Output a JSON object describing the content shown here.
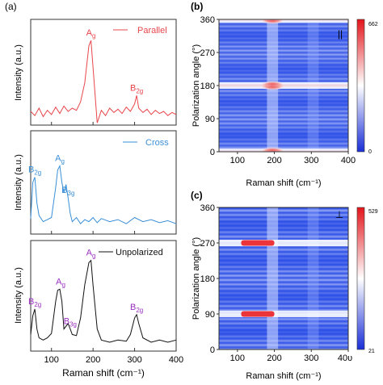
{
  "panels": {
    "a": "(a)",
    "b": "(b)",
    "c": "(c)"
  },
  "colors": {
    "parallel": "#e8464b",
    "cross": "#3a8fd8",
    "unpolarized": "#111111",
    "peak_label_a1": "#e8464b",
    "peak_label_a2": "#3a8fd8",
    "peak_label_a3": "#9b2fc0"
  },
  "chart_data": [
    {
      "type": "line",
      "panel": "a-top",
      "legend": "Parallel",
      "legend_position": "top-right",
      "ylabel": "Intensity (a.u.)",
      "xlim": [
        50,
        400
      ],
      "ylim": [
        0,
        1
      ],
      "x": [
        50,
        60,
        70,
        80,
        90,
        100,
        110,
        120,
        130,
        140,
        150,
        160,
        170,
        180,
        190,
        195,
        200,
        210,
        220,
        230,
        240,
        250,
        260,
        270,
        280,
        290,
        300,
        305,
        310,
        320,
        330,
        340,
        350,
        360,
        370,
        380,
        390,
        400
      ],
      "y": [
        0.13,
        0.09,
        0.16,
        0.08,
        0.14,
        0.1,
        0.17,
        0.11,
        0.18,
        0.13,
        0.16,
        0.14,
        0.22,
        0.4,
        0.75,
        0.8,
        0.55,
        0.02,
        0.14,
        0.09,
        0.16,
        0.12,
        0.15,
        0.11,
        0.17,
        0.13,
        0.2,
        0.28,
        0.16,
        0.12,
        0.15,
        0.1,
        0.14,
        0.11,
        0.13,
        0.09,
        0.12,
        0.1
      ],
      "peaks": [
        {
          "base": "A",
          "sub": "g",
          "x": 195
        },
        {
          "base": "B",
          "sub": "2g",
          "x": 305
        }
      ]
    },
    {
      "type": "line",
      "panel": "a-middle",
      "legend": "Cross",
      "legend_position": "top-right",
      "ylabel": "Intensity (a.u.)",
      "xlim": [
        50,
        400
      ],
      "ylim": [
        0,
        1
      ],
      "x": [
        50,
        55,
        60,
        65,
        70,
        80,
        90,
        100,
        110,
        115,
        120,
        125,
        130,
        135,
        140,
        145,
        150,
        160,
        170,
        180,
        190,
        200,
        210,
        220,
        240,
        260,
        280,
        300,
        320,
        340,
        360,
        380,
        400
      ],
      "y": [
        0.15,
        0.5,
        0.55,
        0.3,
        0.18,
        0.12,
        0.14,
        0.16,
        0.45,
        0.62,
        0.66,
        0.5,
        0.4,
        0.48,
        0.35,
        0.2,
        0.12,
        0.16,
        0.1,
        0.14,
        0.12,
        0.16,
        0.11,
        0.15,
        0.12,
        0.14,
        0.1,
        0.16,
        0.12,
        0.14,
        0.11,
        0.13,
        0.1
      ],
      "peaks": [
        {
          "base": "B",
          "sub": "2g",
          "x": 60
        },
        {
          "base": "A",
          "sub": "g",
          "x": 120
        },
        {
          "base": "B",
          "sub": "3g",
          "x": 140
        }
      ]
    },
    {
      "type": "line",
      "panel": "a-bottom",
      "legend": "Unpolarized",
      "legend_position": "top-right",
      "ylabel": "Intensity (a.u.)",
      "xlabel": "Raman shift (cm⁻¹)",
      "xlim": [
        50,
        400
      ],
      "xticks": [
        100,
        200,
        300,
        400
      ],
      "ylim": [
        0,
        1
      ],
      "x": [
        50,
        55,
        60,
        65,
        70,
        80,
        90,
        100,
        110,
        115,
        120,
        125,
        130,
        140,
        145,
        150,
        160,
        170,
        180,
        190,
        195,
        200,
        210,
        220,
        240,
        260,
        280,
        290,
        300,
        305,
        310,
        320,
        340,
        360,
        380,
        400
      ],
      "y": [
        0.15,
        0.32,
        0.38,
        0.2,
        0.12,
        0.1,
        0.12,
        0.16,
        0.45,
        0.55,
        0.56,
        0.45,
        0.2,
        0.25,
        0.2,
        0.15,
        0.14,
        0.3,
        0.6,
        0.8,
        0.82,
        0.6,
        0.2,
        0.1,
        0.08,
        0.1,
        0.09,
        0.15,
        0.3,
        0.33,
        0.25,
        0.12,
        0.08,
        0.1,
        0.08,
        0.1
      ],
      "peaks": [
        {
          "base": "B",
          "sub": "2g",
          "x": 60
        },
        {
          "base": "A",
          "sub": "g",
          "x": 122
        },
        {
          "base": "B",
          "sub": "3g",
          "x": 145
        },
        {
          "base": "A",
          "sub": "g",
          "x": 195
        },
        {
          "base": "B",
          "sub": "2g",
          "x": 305
        }
      ]
    },
    {
      "type": "heatmap",
      "panel": "b",
      "xlabel": "Raman shift (cm⁻¹)",
      "ylabel": "Polarization angle (°)",
      "xlim": [
        50,
        400
      ],
      "ylim": [
        0,
        360
      ],
      "xticks": [
        100,
        200,
        300,
        400
      ],
      "yticks": [
        0,
        90,
        180,
        270,
        360
      ],
      "colorbar": {
        "min": 0,
        "max": 662,
        "labels": [
          "0",
          "662"
        ]
      },
      "corner_symbol": "||",
      "bright_rows": [
        0,
        180,
        360
      ],
      "bright_column": 195
    },
    {
      "type": "heatmap",
      "panel": "c",
      "xlabel": "Raman shift (cm⁻¹)",
      "ylabel": "Polarization angle (°)",
      "xlim": [
        50,
        400
      ],
      "ylim": [
        0,
        360
      ],
      "xticks": [
        100,
        200,
        300,
        "40υ"
      ],
      "yticks": [
        0,
        90,
        180,
        270,
        360
      ],
      "colorbar": {
        "min": 21,
        "max": 529,
        "labels": [
          "21",
          "529"
        ]
      },
      "corner_symbol": "⊥",
      "bright_rows": [
        90,
        270
      ],
      "bright_column": 195
    }
  ]
}
